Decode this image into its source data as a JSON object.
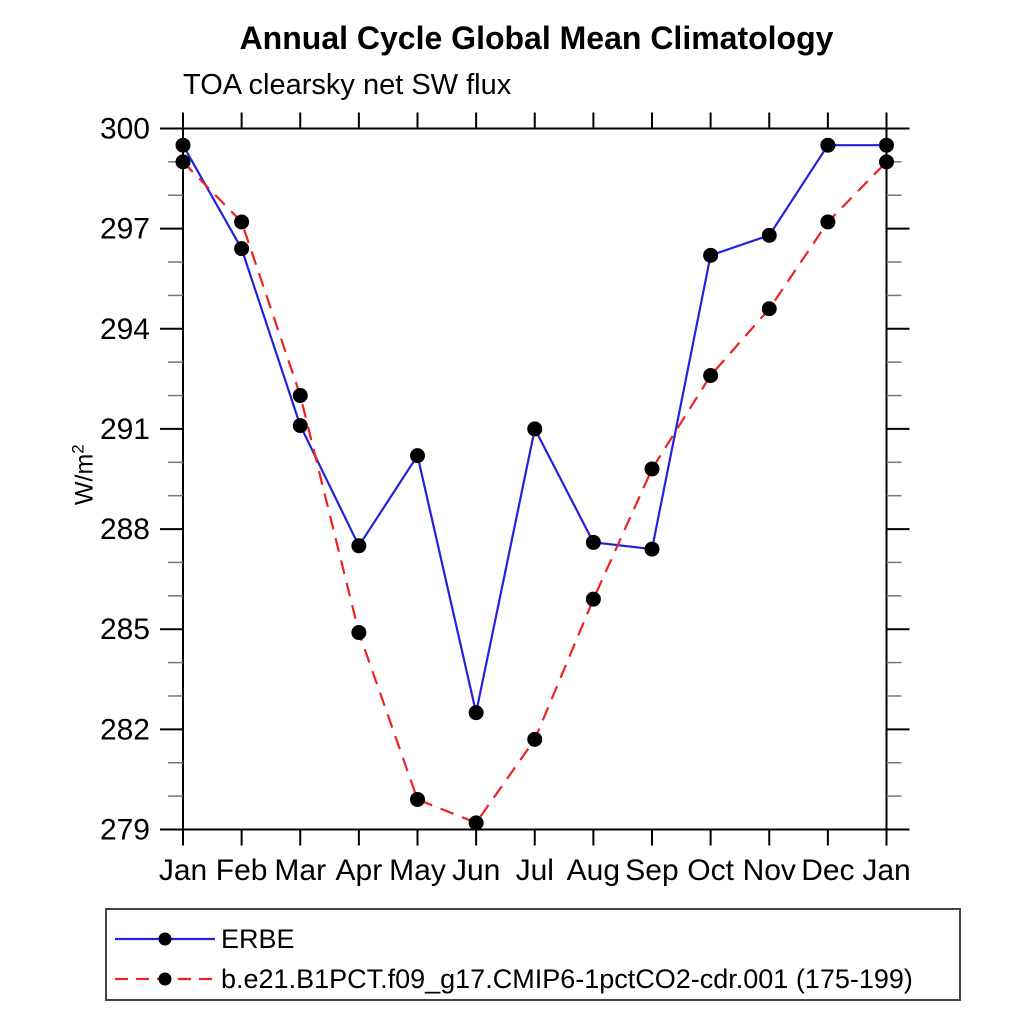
{
  "chart_data": {
    "type": "line",
    "title": "Annual Cycle Global Mean Climatology",
    "subtitle": "TOA clearsky net SW flux",
    "ylabel_base": "W/m",
    "ylabel_exp": "2",
    "categories": [
      "Jan",
      "Feb",
      "Mar",
      "Apr",
      "May",
      "Jun",
      "Jul",
      "Aug",
      "Sep",
      "Oct",
      "Nov",
      "Dec",
      "Jan"
    ],
    "series": [
      {
        "name": "ERBE",
        "line_color": "#2222dd",
        "line_style": "solid",
        "marker": "filled-circle",
        "marker_color": "#000000",
        "values": [
          299.5,
          296.4,
          291.1,
          287.5,
          290.2,
          282.5,
          291.0,
          287.6,
          287.4,
          296.2,
          296.8,
          299.5,
          299.5
        ]
      },
      {
        "name": "b.e21.B1PCT.f09_g17.CMIP6-1pctCO2-cdr.001 (175-199)",
        "line_color": "#ee2222",
        "line_style": "dashed",
        "marker": "filled-circle",
        "marker_color": "#000000",
        "values": [
          299.0,
          297.2,
          292.0,
          284.9,
          279.9,
          279.2,
          281.7,
          285.9,
          289.8,
          292.6,
          294.6,
          297.2,
          299.0
        ]
      }
    ],
    "ylim": [
      279,
      300
    ],
    "yticks_major": [
      279,
      282,
      285,
      288,
      291,
      294,
      297,
      300
    ],
    "ytick_minor_step": 1,
    "grid": false,
    "legend_position": "bottom-left-box",
    "axis_color": "#000000",
    "minor_tick_color": "#777777"
  }
}
